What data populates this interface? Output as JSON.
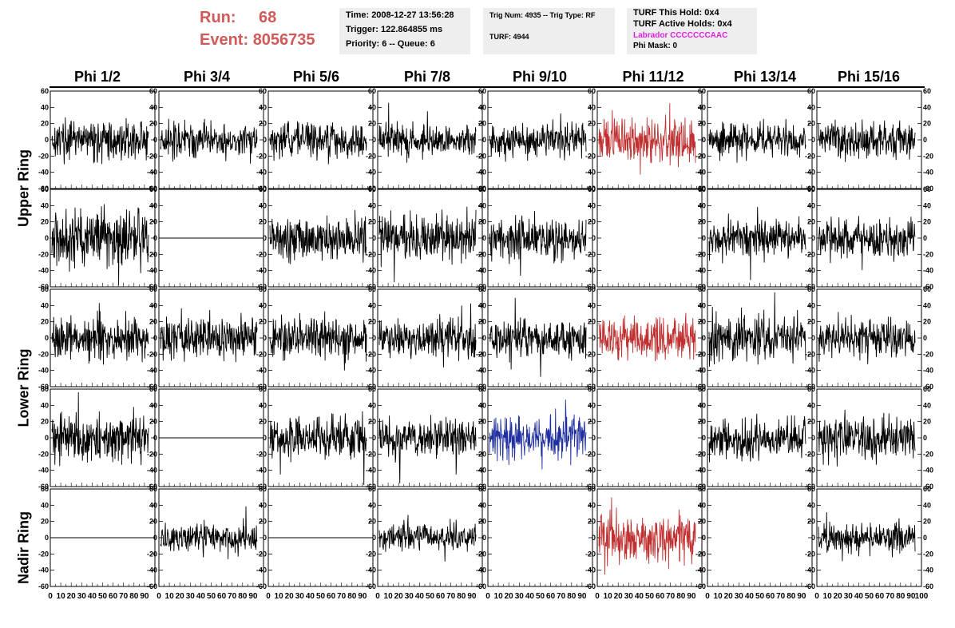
{
  "header": {
    "run_label": "Run:",
    "run_value": "68",
    "event_label": "Event:",
    "event_value": "8056735",
    "time": "Time: 2008-12-27 13:56:28",
    "trigger": "Trigger: 122.864855 ms",
    "priority": "Priority: 6 -- Queue: 6",
    "trig_num": "Trig Num: 4935 -- Trig Type: RF",
    "turf": "TURF: 4944",
    "turf_this_hold": "TURF This Hold: 0x4",
    "turf_active_holds": "TURF Active Holds: 0x4",
    "labrador": "Labrador CCCCCCCAAC",
    "phi_mask": "Phi Mask: 0",
    "colors": {
      "run": "#d05a5a",
      "labrador": "#e020e0",
      "panel_bg": "#eeeeee"
    }
  },
  "columns": [
    "Phi 1/2",
    "Phi 3/4",
    "Phi 5/6",
    "Phi 7/8",
    "Phi 9/10",
    "Phi 11/12",
    "Phi 13/14",
    "Phi 15/16"
  ],
  "rows": [
    "Upper Ring",
    "Lower Ring",
    "Nadir Ring"
  ],
  "chart_data": {
    "type": "line",
    "title": "",
    "xlabel": "",
    "ylabel": "",
    "xlim": [
      0,
      100
    ],
    "ylim": [
      -60,
      60
    ],
    "y_ticks": [
      -60,
      -40,
      -20,
      0,
      20,
      40,
      60
    ],
    "x_tick_labels": [
      "0",
      "10",
      "20",
      "30",
      "40",
      "50",
      "60",
      "70",
      "80",
      "90",
      "100"
    ],
    "grid": false,
    "n_samples": 260,
    "trace_colors": {
      "normal": "#000000",
      "triggered": "#c03030",
      "blue": "#2030a0"
    },
    "panels": [
      {
        "row": 0,
        "col": 0,
        "amp": 11,
        "state": "normal"
      },
      {
        "row": 0,
        "col": 1,
        "amp": 11,
        "state": "normal"
      },
      {
        "row": 0,
        "col": 2,
        "amp": 10,
        "state": "normal"
      },
      {
        "row": 0,
        "col": 3,
        "amp": 9,
        "state": "normal"
      },
      {
        "row": 0,
        "col": 4,
        "amp": 10,
        "state": "normal"
      },
      {
        "row": 0,
        "col": 5,
        "amp": 14,
        "state": "triggered"
      },
      {
        "row": 0,
        "col": 6,
        "amp": 10,
        "state": "normal"
      },
      {
        "row": 0,
        "col": 7,
        "amp": 11,
        "state": "normal"
      },
      {
        "row": 1,
        "col": 0,
        "amp": 18,
        "state": "normal"
      },
      {
        "row": 1,
        "col": 1,
        "amp": 0,
        "state": "flat"
      },
      {
        "row": 1,
        "col": 2,
        "amp": 13,
        "state": "normal"
      },
      {
        "row": 1,
        "col": 3,
        "amp": 14,
        "state": "normal"
      },
      {
        "row": 1,
        "col": 4,
        "amp": 12,
        "state": "normal"
      },
      {
        "row": 1,
        "col": 5,
        "amp": 0,
        "state": "empty"
      },
      {
        "row": 1,
        "col": 6,
        "amp": 11,
        "state": "normal"
      },
      {
        "row": 1,
        "col": 7,
        "amp": 12,
        "state": "normal"
      },
      {
        "row": 2,
        "col": 0,
        "amp": 13,
        "state": "normal"
      },
      {
        "row": 2,
        "col": 1,
        "amp": 13,
        "state": "normal"
      },
      {
        "row": 2,
        "col": 2,
        "amp": 12,
        "state": "normal"
      },
      {
        "row": 2,
        "col": 3,
        "amp": 11,
        "state": "normal"
      },
      {
        "row": 2,
        "col": 4,
        "amp": 11,
        "state": "normal"
      },
      {
        "row": 2,
        "col": 5,
        "amp": 13,
        "state": "triggered"
      },
      {
        "row": 2,
        "col": 6,
        "amp": 14,
        "state": "normal"
      },
      {
        "row": 2,
        "col": 7,
        "amp": 11,
        "state": "normal"
      },
      {
        "row": 3,
        "col": 0,
        "amp": 14,
        "state": "normal"
      },
      {
        "row": 3,
        "col": 1,
        "amp": 0,
        "state": "flat"
      },
      {
        "row": 3,
        "col": 2,
        "amp": 13,
        "state": "normal"
      },
      {
        "row": 3,
        "col": 3,
        "amp": 12,
        "state": "normal"
      },
      {
        "row": 3,
        "col": 4,
        "amp": 13,
        "state": "blue"
      },
      {
        "row": 3,
        "col": 5,
        "amp": 0,
        "state": "empty"
      },
      {
        "row": 3,
        "col": 6,
        "amp": 12,
        "state": "normal"
      },
      {
        "row": 3,
        "col": 7,
        "amp": 13,
        "state": "normal"
      },
      {
        "row": 4,
        "col": 0,
        "amp": 0,
        "state": "flat"
      },
      {
        "row": 4,
        "col": 1,
        "amp": 8,
        "state": "normal"
      },
      {
        "row": 4,
        "col": 2,
        "amp": 0,
        "state": "flat"
      },
      {
        "row": 4,
        "col": 3,
        "amp": 9,
        "state": "normal"
      },
      {
        "row": 4,
        "col": 4,
        "amp": 0,
        "state": "empty"
      },
      {
        "row": 4,
        "col": 5,
        "amp": 14,
        "state": "triggered"
      },
      {
        "row": 4,
        "col": 6,
        "amp": 0,
        "state": "empty"
      },
      {
        "row": 4,
        "col": 7,
        "amp": 9,
        "state": "normal"
      }
    ]
  }
}
